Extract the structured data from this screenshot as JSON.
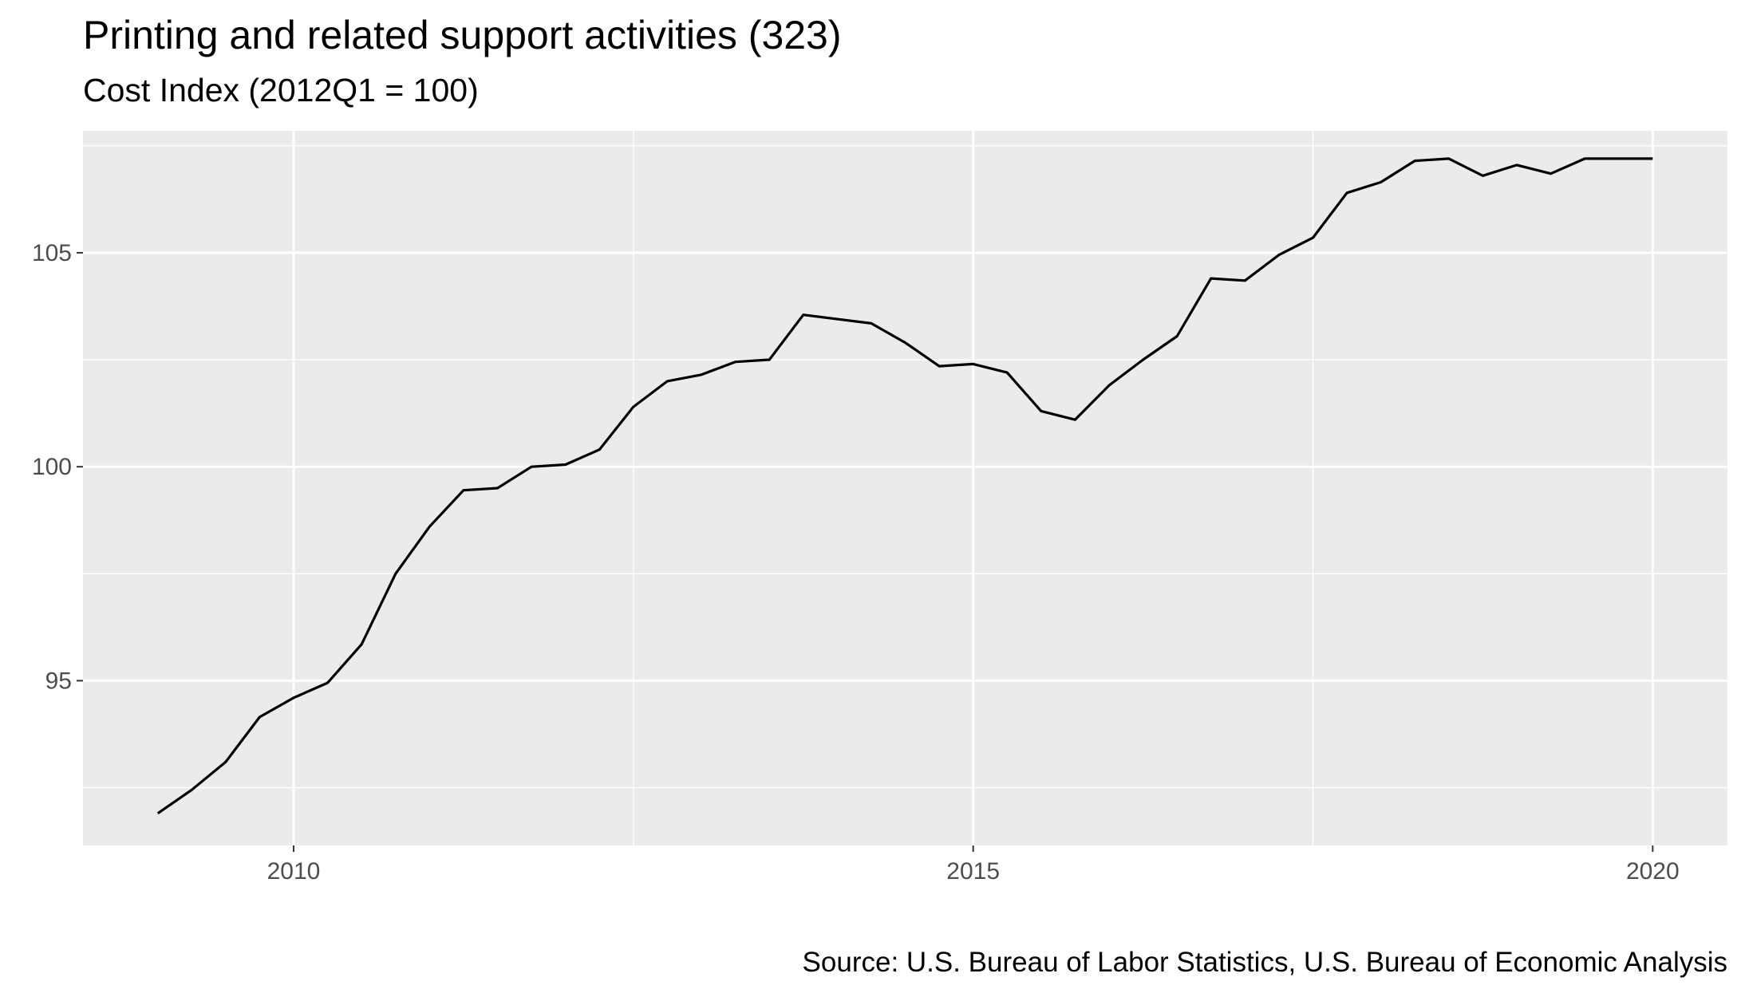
{
  "title": "Printing and related support activities (323)",
  "subtitle": "Cost Index (2012Q1 = 100)",
  "caption": "Source: U.S. Bureau of Labor Statistics, U.S. Bureau of Economic Analysis",
  "colors": {
    "panel_background": "#ebebeb",
    "grid_major": "#ffffff",
    "line": "#000000",
    "tick_text": "#4d4d4d"
  },
  "chart_data": {
    "type": "line",
    "title": "Printing and related support activities (323)",
    "subtitle": "Cost Index (2012Q1 = 100)",
    "xlabel": "",
    "ylabel": "",
    "xlim": [
      2008.45,
      2020.55
    ],
    "ylim": [
      91.15,
      107.85
    ],
    "x_ticks": [
      2010,
      2015,
      2020
    ],
    "y_ticks": [
      95,
      100,
      105
    ],
    "grid": true,
    "legend": "none",
    "series": [
      {
        "x": [
          2009.0,
          2009.25,
          2009.5,
          2009.75,
          2010.0,
          2010.25,
          2010.5,
          2010.75,
          2011.0,
          2011.25,
          2011.5,
          2011.75,
          2012.0,
          2012.25,
          2012.5,
          2012.75,
          2013.0,
          2013.25,
          2013.5,
          2013.75,
          2014.0,
          2014.25,
          2014.5,
          2014.75,
          2015.0,
          2015.25,
          2015.5,
          2015.75,
          2016.0,
          2016.25,
          2016.5,
          2016.75,
          2017.0,
          2017.25,
          2017.5,
          2017.75,
          2018.0,
          2018.25,
          2018.5,
          2018.75,
          2019.0,
          2019.25,
          2019.5,
          2019.75,
          2020.0
        ],
        "values": [
          91.9,
          92.45,
          93.1,
          94.15,
          94.6,
          94.95,
          95.85,
          97.5,
          98.6,
          99.45,
          99.5,
          100.0,
          100.05,
          100.4,
          101.4,
          102.0,
          102.15,
          102.45,
          102.5,
          103.55,
          103.45,
          103.35,
          102.9,
          102.35,
          102.4,
          102.2,
          101.3,
          101.1,
          101.9,
          102.5,
          103.05,
          104.4,
          104.35,
          104.95,
          105.35,
          106.4,
          106.65,
          107.15,
          107.2,
          106.8,
          107.05,
          106.85,
          107.2,
          107.2,
          107.2
        ]
      }
    ]
  }
}
